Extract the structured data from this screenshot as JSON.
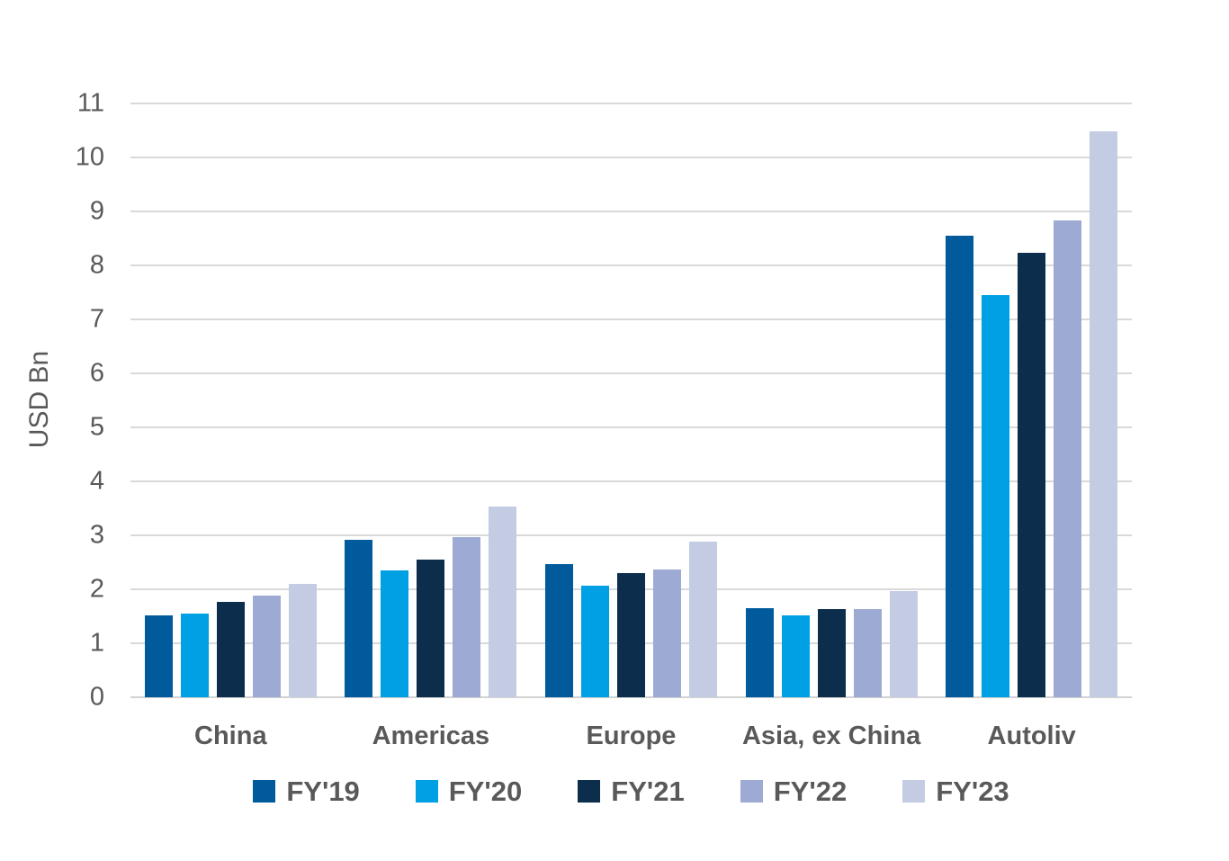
{
  "chart_data": {
    "type": "bar",
    "title": "",
    "ylabel": "USD Bn",
    "xlabel": "",
    "ylim": [
      0,
      11
    ],
    "yticks": [
      0,
      1,
      2,
      3,
      4,
      5,
      6,
      7,
      8,
      9,
      10,
      11
    ],
    "grid": true,
    "legend_position": "bottom",
    "categories": [
      "China",
      "Americas",
      "Europe",
      "Asia, ex China",
      "Autoliv"
    ],
    "series": [
      {
        "name": "FY'19",
        "color": "#005a9b",
        "values": [
          1.52,
          2.92,
          2.46,
          1.65,
          8.55
        ]
      },
      {
        "name": "FY'20",
        "color": "#00a0e4",
        "values": [
          1.55,
          2.35,
          2.07,
          1.52,
          7.45
        ]
      },
      {
        "name": "FY'21",
        "color": "#0c2d4c",
        "values": [
          1.77,
          2.55,
          2.3,
          1.64,
          8.23
        ]
      },
      {
        "name": "FY'22",
        "color": "#9dabd4",
        "values": [
          1.89,
          2.97,
          2.36,
          1.63,
          8.84
        ]
      },
      {
        "name": "FY'23",
        "color": "#c3cce3",
        "values": [
          2.1,
          3.53,
          2.88,
          1.96,
          10.48
        ]
      }
    ],
    "colors": {
      "gridline": "#d9d9d9",
      "axis_text": "#595959"
    }
  }
}
